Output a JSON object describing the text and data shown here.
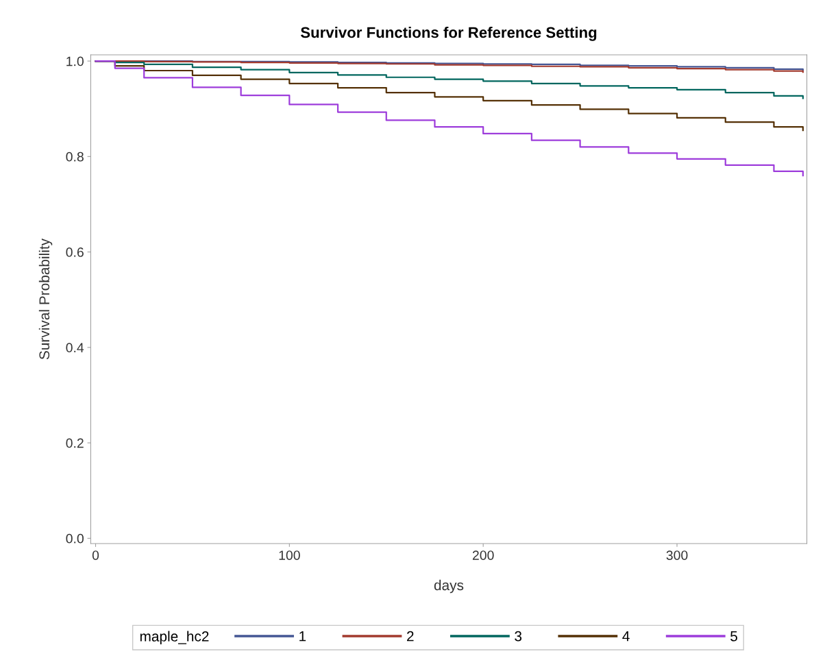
{
  "chart_data": {
    "type": "step",
    "title": "Survivor Functions for Reference Setting",
    "xlabel": "days",
    "ylabel": "Survival Probability",
    "legend_title": "maple_hc2",
    "legend": "bottom",
    "grid": false,
    "xlim": [
      -2.5,
      367
    ],
    "xticks": [
      0,
      100,
      200,
      300
    ],
    "ylim": [
      -0.011,
      1.013
    ],
    "yticks": [
      {
        "value": 0,
        "label": "0.0"
      },
      0.2,
      0.4,
      0.6,
      0.8,
      {
        "value": 1,
        "label": "1.0"
      }
    ],
    "series": [
      {
        "name": "1",
        "color": "#445694",
        "x": [
          0,
          50,
          75,
          100,
          125,
          150,
          175,
          200,
          225,
          250,
          275,
          300,
          325,
          350,
          365
        ],
        "values": [
          1.0,
          0.999,
          0.999,
          0.998,
          0.997,
          0.996,
          0.995,
          0.994,
          0.993,
          0.991,
          0.99,
          0.988,
          0.986,
          0.983,
          0.981
        ]
      },
      {
        "name": "2",
        "color": "#a23a2e",
        "x": [
          0,
          25,
          50,
          75,
          100,
          125,
          150,
          175,
          200,
          225,
          250,
          275,
          300,
          325,
          350,
          365
        ],
        "values": [
          1.0,
          0.999,
          0.998,
          0.997,
          0.996,
          0.995,
          0.994,
          0.992,
          0.991,
          0.989,
          0.988,
          0.986,
          0.984,
          0.982,
          0.979,
          0.977
        ]
      },
      {
        "name": "3",
        "color": "#01665e",
        "x": [
          0,
          10,
          25,
          50,
          75,
          100,
          125,
          150,
          175,
          200,
          225,
          250,
          275,
          300,
          325,
          350,
          365
        ],
        "values": [
          1.0,
          0.997,
          0.993,
          0.987,
          0.982,
          0.976,
          0.971,
          0.966,
          0.962,
          0.958,
          0.953,
          0.948,
          0.944,
          0.94,
          0.934,
          0.927,
          0.922
        ]
      },
      {
        "name": "4",
        "color": "#543005",
        "x": [
          0,
          10,
          25,
          50,
          75,
          100,
          125,
          150,
          175,
          200,
          225,
          250,
          275,
          300,
          325,
          350,
          365
        ],
        "values": [
          1.0,
          0.99,
          0.98,
          0.97,
          0.962,
          0.953,
          0.944,
          0.934,
          0.925,
          0.917,
          0.908,
          0.899,
          0.89,
          0.881,
          0.872,
          0.862,
          0.855
        ]
      },
      {
        "name": "5",
        "color": "#9d3cdb",
        "x": [
          0,
          10,
          25,
          50,
          75,
          100,
          125,
          150,
          175,
          200,
          225,
          250,
          275,
          300,
          325,
          350,
          365
        ],
        "values": [
          1.0,
          0.985,
          0.965,
          0.945,
          0.928,
          0.909,
          0.893,
          0.876,
          0.862,
          0.848,
          0.834,
          0.82,
          0.807,
          0.795,
          0.782,
          0.769,
          0.76
        ]
      }
    ]
  }
}
